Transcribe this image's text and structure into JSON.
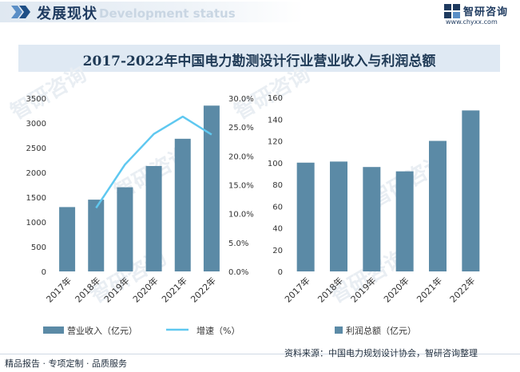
{
  "header": {
    "title": "发展现状",
    "subtitle": "Development status"
  },
  "brand": {
    "name": "智研咨询",
    "url": "www.chyxx.com"
  },
  "watermark": "智研咨询",
  "colors": {
    "bar": "#5b8aa6",
    "line": "#5fc8f0",
    "title_box": "#dfe9f3"
  },
  "chart_data": [
    {
      "type": "bar",
      "categories": [
        "2017年",
        "2018年",
        "2019年",
        "2020年",
        "2021年",
        "2022年"
      ],
      "series": [
        {
          "name": "营业收入（亿元）",
          "type": "bar",
          "axis": "left",
          "values": [
            1300,
            1450,
            1700,
            2130,
            2680,
            3350
          ]
        },
        {
          "name": "增速（%）",
          "type": "line",
          "axis": "right",
          "values": [
            null,
            11.0,
            18.5,
            23.8,
            26.8,
            23.7
          ]
        }
      ],
      "y_left": {
        "min": 0,
        "max": 3500,
        "ticks": [
          "0",
          "500",
          "1000",
          "1500",
          "2000",
          "2500",
          "3000",
          "3500"
        ]
      },
      "y_right": {
        "min": 0,
        "max": 30,
        "ticks": [
          "0.0%",
          "5.0%",
          "10.0%",
          "15.0%",
          "20.0%",
          "25.0%",
          "30.0%"
        ]
      },
      "legend": "bottom"
    },
    {
      "type": "bar",
      "categories": [
        "2017年",
        "2018年",
        "2019年",
        "2020年",
        "2021年",
        "2022年"
      ],
      "series": [
        {
          "name": "利润总额（亿元）",
          "values": [
            100,
            101,
            96,
            92,
            120,
            148
          ]
        }
      ],
      "y": {
        "min": 0,
        "max": 160,
        "ticks": [
          "0",
          "20",
          "40",
          "60",
          "80",
          "100",
          "120",
          "140",
          "160"
        ]
      },
      "legend": "bottom"
    }
  ],
  "chart_title": "2017-2022年中国电力勘测设计行业营业收入与利润总额",
  "footer": {
    "left": "精品报告 · 专项定制 · 品质服务",
    "right": "资料来源：中国电力规划设计协会，智研咨询整理"
  }
}
